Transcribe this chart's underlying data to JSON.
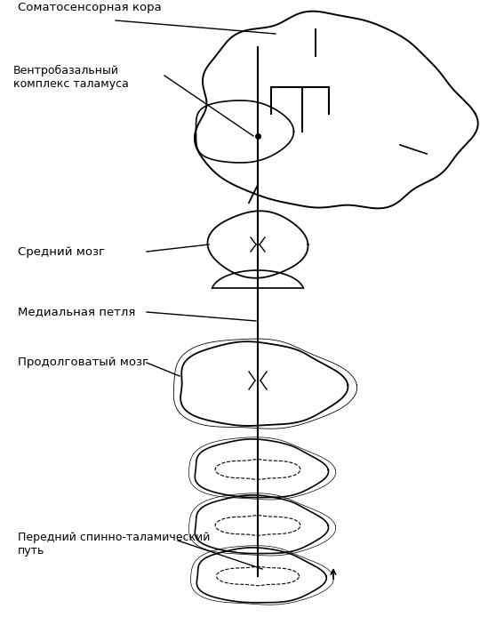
{
  "bg_color": "#ffffff",
  "line_color": "#000000",
  "labels": {
    "somatosensory_cortex": "Соматосенсорная кора",
    "ventrobasal": "Вентробазальный\nкомплекс таламуса",
    "midbrain": "Средний мозг",
    "medial_lemniscus": "Медиальная петля",
    "medulla": "Продолговатый мозг",
    "spinothalamic": "Передний спинно-таламический\nпуть"
  },
  "figsize": [
    5.4,
    7.03
  ],
  "dpi": 100
}
